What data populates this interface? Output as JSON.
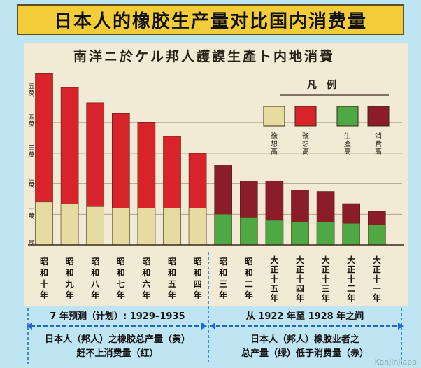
{
  "header": {
    "title": "日本人的橡胶生产量对比国内消费量"
  },
  "chart_data": {
    "type": "bar",
    "title": "南洋ニ於ケル邦人護謨生產ト内地消費",
    "legend": {
      "title": "凡　例",
      "entries": [
        {
          "label": "豫想高",
          "color": "#e6dca2"
        },
        {
          "label": "豫想高",
          "color": "#d8232b"
        },
        {
          "label": "生產高",
          "color": "#4ea844"
        },
        {
          "label": "消費高",
          "color": "#8a1d27"
        }
      ]
    },
    "y_ticks": [
      {
        "label": "五萬",
        "value": 50000
      },
      {
        "label": "四萬",
        "value": 40000
      },
      {
        "label": "三萬",
        "value": 30000
      },
      {
        "label": "二萬",
        "value": 20000
      },
      {
        "label": "一萬",
        "value": 10000
      },
      {
        "label": "噸",
        "value": 0
      }
    ],
    "ylim": [
      0,
      57000
    ],
    "categories": [
      "昭和十年",
      "昭和九年",
      "昭和八年",
      "昭和七年",
      "昭和六年",
      "昭和五年",
      "昭和四年",
      "昭和三年",
      "昭和二年",
      "大正十五年",
      "大正十四年",
      "大正十三年",
      "大正十二年",
      "大正十一年"
    ],
    "series": [
      {
        "name": "消費高",
        "colors": [
          "#d8232b",
          "#d8232b",
          "#d8232b",
          "#d8232b",
          "#d8232b",
          "#d8232b",
          "#d8232b",
          "#8a1d27",
          "#8a1d27",
          "#8a1d27",
          "#8a1d27",
          "#8a1d27",
          "#8a1d27",
          "#8a1d27"
        ],
        "values": [
          56000,
          51500,
          46500,
          43000,
          40000,
          35500,
          30000,
          26000,
          21000,
          21000,
          18000,
          17500,
          13500,
          11000
        ]
      },
      {
        "name": "生產高",
        "colors": [
          "#e6dca2",
          "#e6dca2",
          "#e6dca2",
          "#e6dca2",
          "#e6dca2",
          "#e6dca2",
          "#e6dca2",
          "#4ea844",
          "#4ea844",
          "#4ea844",
          "#4ea844",
          "#4ea844",
          "#4ea844",
          "#4ea844"
        ],
        "values": [
          14000,
          13500,
          12500,
          12000,
          12000,
          12000,
          12000,
          10000,
          9000,
          8000,
          7500,
          7500,
          7000,
          6500
        ]
      }
    ]
  },
  "annotations": {
    "left_period": "7 年预测（计划）: 1929–1935",
    "right_period": "从 1922 年至 1928 年之间",
    "left_note_line1": "日本人（邦人）之橡胶总产量（黄）",
    "left_note_line2": "赶不上消费量（红）",
    "right_note_line1": "日本人（邦人）橡胶业者之",
    "right_note_line2": "总产量（绿）低于消费量（赤）",
    "watermark": "Kanjinjiapo"
  }
}
